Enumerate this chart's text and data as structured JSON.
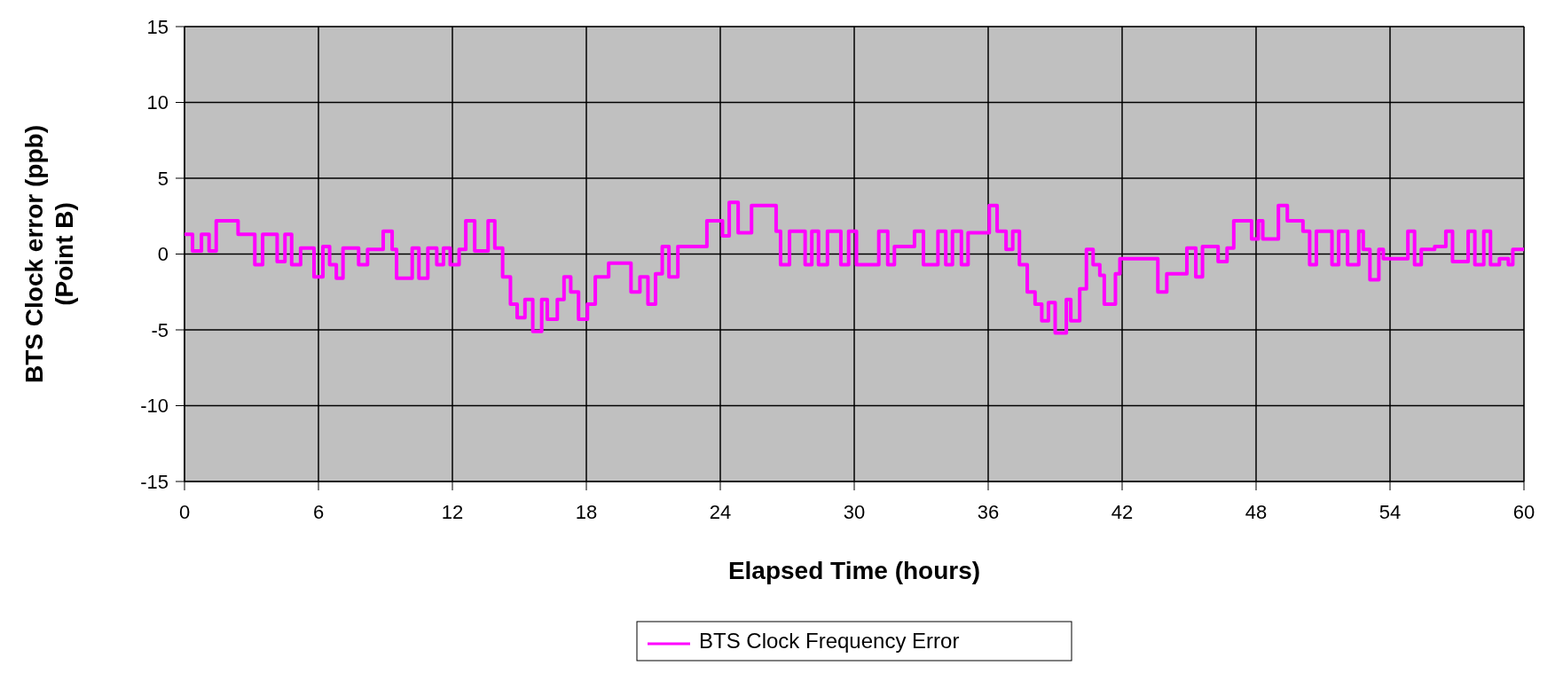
{
  "chart_data": {
    "type": "step",
    "xlabel": "Elapsed Time (hours)",
    "ylabel": "BTS Clock error (ppb)\n(Point B)",
    "xlim": [
      0,
      60
    ],
    "xticks": [
      0,
      6,
      12,
      18,
      24,
      30,
      36,
      42,
      48,
      54,
      60
    ],
    "ylim": [
      -15,
      15
    ],
    "yticks": [
      -15,
      -10,
      -5,
      0,
      5,
      10,
      15
    ],
    "grid": true,
    "legend": "bottom",
    "series": [
      {
        "name": "BTS Clock Frequency Error",
        "color": "#ff00ff",
        "x": [
          0,
          0.36,
          0.76,
          1.1,
          1.42,
          2.4,
          3.15,
          3.5,
          4.15,
          4.5,
          4.8,
          5.2,
          5.8,
          6.2,
          6.5,
          6.8,
          7.1,
          7.8,
          8.2,
          8.9,
          9.3,
          9.5,
          10.2,
          10.5,
          10.9,
          11.3,
          11.6,
          11.9,
          12.3,
          12.6,
          13.0,
          13.6,
          13.9,
          14.25,
          14.6,
          14.9,
          15.25,
          15.6,
          16.0,
          16.25,
          16.7,
          17.0,
          17.3,
          17.65,
          18.05,
          18.4,
          19.0,
          20.0,
          20.4,
          20.76,
          21.1,
          21.4,
          21.7,
          22.1,
          23.4,
          24.1,
          24.4,
          24.8,
          25.4,
          26.5,
          26.7,
          27.1,
          27.8,
          28.1,
          28.4,
          28.8,
          29.4,
          29.75,
          30.1,
          31.1,
          31.5,
          31.8,
          32.7,
          33.1,
          33.75,
          34.1,
          34.4,
          34.8,
          35.1,
          36.05,
          36.4,
          36.8,
          37.1,
          37.4,
          37.75,
          38.1,
          38.4,
          38.7,
          39.0,
          39.5,
          39.7,
          40.1,
          40.4,
          40.7,
          41.0,
          41.2,
          41.7,
          41.9,
          43.6,
          44.0,
          44.9,
          45.3,
          45.6,
          46.3,
          46.7,
          47.0,
          47.8,
          48.1,
          48.3,
          49.0,
          49.4,
          50.1,
          50.4,
          50.7,
          51.4,
          51.7,
          52.1,
          52.6,
          52.8,
          53.1,
          53.5,
          53.7,
          54.8,
          55.1,
          55.4,
          56.0,
          56.5,
          56.8,
          57.5,
          57.8,
          58.2,
          58.5,
          58.9,
          59.3,
          59.5,
          60
        ],
        "values": [
          1.3,
          0.2,
          1.3,
          0.2,
          2.2,
          1.3,
          -0.7,
          1.3,
          -0.5,
          1.3,
          -0.7,
          0.4,
          -1.5,
          0.5,
          -0.7,
          -1.6,
          0.4,
          -0.7,
          0.3,
          1.5,
          0.3,
          -1.6,
          0.4,
          -1.6,
          0.4,
          -0.7,
          0.4,
          -0.7,
          0.3,
          2.2,
          0.2,
          2.2,
          0.4,
          -1.5,
          -3.3,
          -4.2,
          -3,
          -5.1,
          -3,
          -4.3,
          -3,
          -1.5,
          -2.5,
          -4.3,
          -3.3,
          -1.5,
          -0.6,
          -2.5,
          -1.5,
          -3.3,
          -1.3,
          0.5,
          -1.5,
          0.5,
          2.2,
          1.2,
          3.4,
          1.4,
          3.2,
          1.5,
          -0.7,
          1.5,
          -0.7,
          1.5,
          -0.7,
          1.5,
          -0.7,
          1.5,
          -0.7,
          1.5,
          -0.7,
          0.5,
          1.5,
          -0.7,
          1.5,
          -0.7,
          1.5,
          -0.7,
          1.4,
          3.2,
          1.5,
          0.3,
          1.5,
          -0.7,
          -2.5,
          -3.3,
          -4.4,
          -3.2,
          -5.2,
          -3,
          -4.4,
          -2.3,
          0.3,
          -0.7,
          -1.4,
          -3.3,
          -1.3,
          -0.3,
          -2.5,
          -1.3,
          0.4,
          -1.5,
          0.5,
          -0.5,
          0.4,
          2.2,
          1,
          2.2,
          1,
          3.2,
          2.2,
          1.5,
          -0.7,
          1.5,
          -0.7,
          1.5,
          -0.7,
          1.5,
          0.3,
          -1.7,
          0.3,
          -0.3,
          1.5,
          -0.7,
          0.3,
          0.5,
          1.5,
          -0.5,
          1.5,
          -0.7,
          1.5,
          -0.7,
          -0.3,
          -0.7,
          0.3,
          0.3
        ]
      }
    ]
  }
}
